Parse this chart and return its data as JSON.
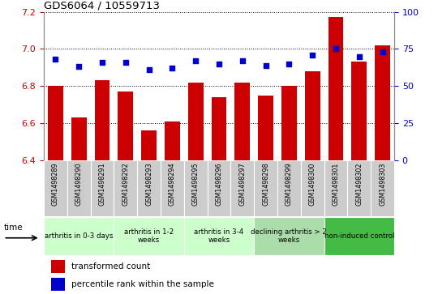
{
  "title": "GDS6064 / 10559713",
  "samples": [
    "GSM1498289",
    "GSM1498290",
    "GSM1498291",
    "GSM1498292",
    "GSM1498293",
    "GSM1498294",
    "GSM1498295",
    "GSM1498296",
    "GSM1498297",
    "GSM1498298",
    "GSM1498299",
    "GSM1498300",
    "GSM1498301",
    "GSM1498302",
    "GSM1498303"
  ],
  "bar_values": [
    6.8,
    6.63,
    6.83,
    6.77,
    6.56,
    6.61,
    6.82,
    6.74,
    6.82,
    6.75,
    6.8,
    6.88,
    7.17,
    6.93,
    7.02
  ],
  "percentile_values": [
    68,
    63,
    66,
    66,
    61,
    62,
    67,
    65,
    67,
    64,
    65,
    71,
    75,
    70,
    73
  ],
  "bar_color": "#cc0000",
  "percentile_color": "#0000cc",
  "ylim_left": [
    6.4,
    7.2
  ],
  "ylim_right": [
    0,
    100
  ],
  "yticks_left": [
    6.4,
    6.6,
    6.8,
    7.0,
    7.2
  ],
  "yticks_right": [
    0,
    25,
    50,
    75,
    100
  ],
  "groups": [
    {
      "label": "arthritis in 0-3 days",
      "start": 0,
      "end": 3,
      "color": "#ccffcc"
    },
    {
      "label": "arthritis in 1-2\nweeks",
      "start": 3,
      "end": 6,
      "color": "#ccffcc"
    },
    {
      "label": "arthritis in 3-4\nweeks",
      "start": 6,
      "end": 9,
      "color": "#ccffcc"
    },
    {
      "label": "declining arthritis > 2\nweeks",
      "start": 9,
      "end": 12,
      "color": "#aaddaa"
    },
    {
      "label": "non-induced control",
      "start": 12,
      "end": 15,
      "color": "#44bb44"
    }
  ],
  "legend_bar_label": "transformed count",
  "legend_pct_label": "percentile rank within the sample",
  "time_label": "time",
  "sample_bg_color": "#cccccc",
  "background_color": "#ffffff",
  "grid_color": "#000000"
}
